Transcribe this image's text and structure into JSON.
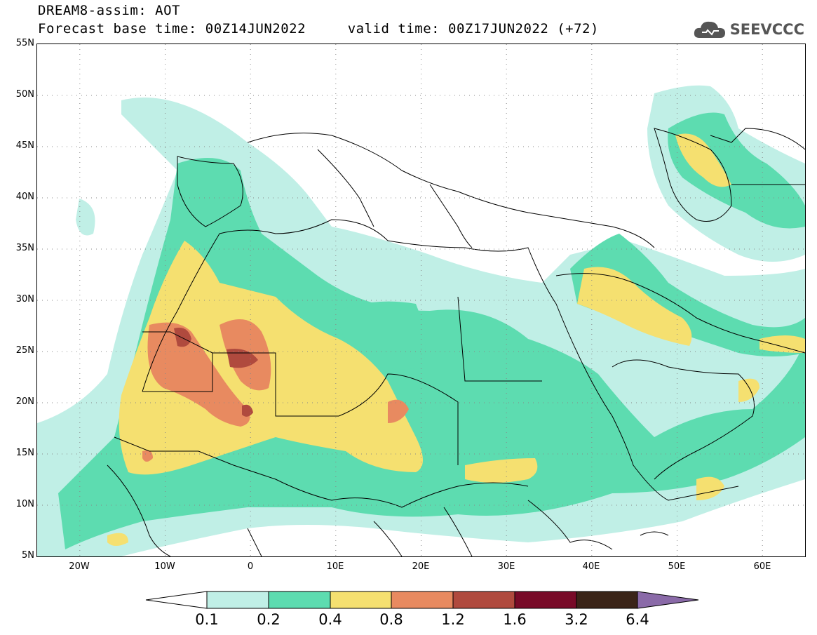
{
  "header": {
    "line1": "DREAM8-assim: AOT",
    "line2": "Forecast base time: 00Z14JUN2022     valid time: 00Z17JUN2022 (+72)"
  },
  "logo": {
    "text": "SEEVCCC",
    "icon": "cloud-icon"
  },
  "map": {
    "lat_ticks": [
      "55N",
      "50N",
      "45N",
      "40N",
      "35N",
      "30N",
      "25N",
      "20N",
      "15N",
      "10N",
      "5N"
    ],
    "lon_ticks": [
      "20W",
      "10W",
      "0",
      "10E",
      "20E",
      "30E",
      "40E",
      "50E",
      "60E"
    ],
    "lat_range": [
      5,
      55
    ],
    "lon_range": [
      -25,
      65
    ],
    "grid": "dotted"
  },
  "colorbar": {
    "labels": [
      "0.1",
      "0.2",
      "0.4",
      "0.8",
      "1.2",
      "1.6",
      "3.2",
      "6.4"
    ],
    "colors": [
      "#ffffff",
      "#c0efe6",
      "#5ddcb0",
      "#f5e070",
      "#e88a60",
      "#b04a3e",
      "#780a28",
      "#3a2418",
      "#8a6aa8"
    ]
  },
  "colors": {
    "level_0_1": "#c0efe6",
    "level_0_2": "#5ddcb0",
    "level_0_4": "#f5e070",
    "level_0_8": "#e88a60",
    "level_1_2": "#b04a3e"
  }
}
